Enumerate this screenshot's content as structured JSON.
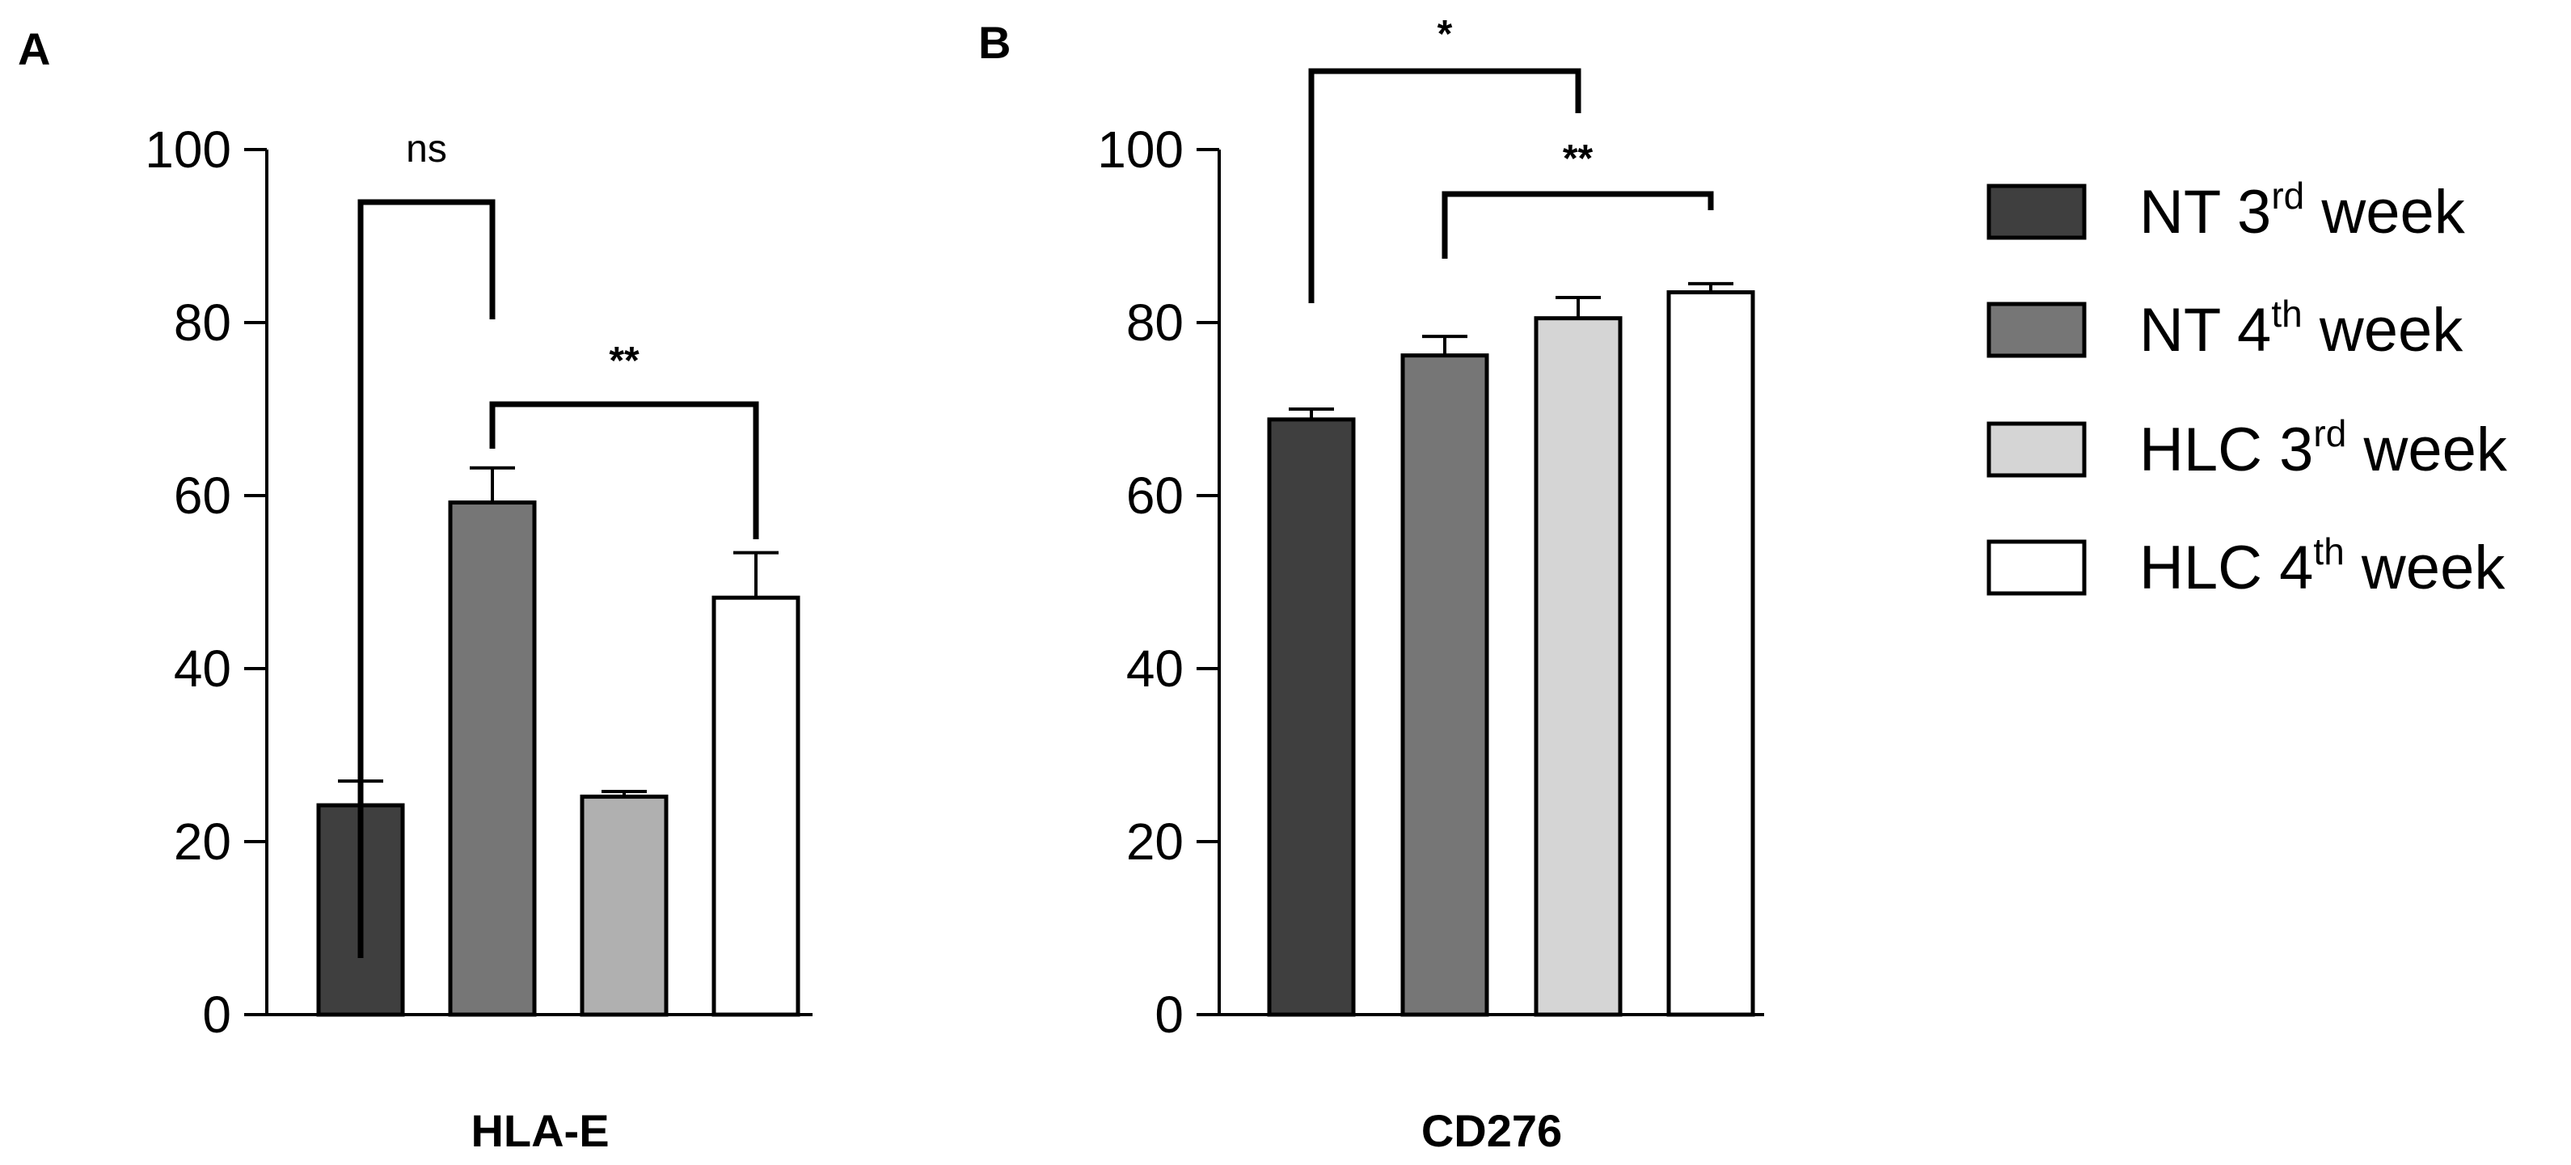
{
  "chart_data": [
    {
      "id": "A",
      "type": "bar",
      "panel_label": "A",
      "title": "",
      "xlabel": "HLA-E",
      "ylabel": "",
      "ylim": [
        0,
        100
      ],
      "yticks": [
        "0",
        "20",
        "40",
        "60",
        "80",
        "100"
      ],
      "grid": false,
      "categories": [
        "NT 3rd week",
        "NT 4th week",
        "HLC 3rd week",
        "HLC 4th week"
      ],
      "values": [
        24.2,
        59.2,
        25.2,
        48.2
      ],
      "errors": [
        2.8,
        4.0,
        0.6,
        5.2
      ],
      "colors": [
        "#3f3f3f",
        "#767676",
        "#b0b0b0",
        "#ffffff"
      ],
      "significance": [
        {
          "from": 0,
          "to": 1,
          "label": "ns",
          "bold": false
        },
        {
          "from": 1,
          "to": 3,
          "label": "**",
          "bold": true
        }
      ]
    },
    {
      "id": "B",
      "type": "bar",
      "panel_label": "B",
      "title": "",
      "xlabel": "CD276",
      "ylabel": "",
      "ylim": [
        0,
        100
      ],
      "yticks": [
        "0",
        "20",
        "40",
        "60",
        "80",
        "100"
      ],
      "grid": false,
      "categories": [
        "NT 3rd week",
        "NT 4th week",
        "HLC 3rd week",
        "HLC 4th week"
      ],
      "values": [
        68.8,
        76.2,
        80.5,
        83.5
      ],
      "errors": [
        1.2,
        2.2,
        2.4,
        1.0
      ],
      "colors": [
        "#3f3f3f",
        "#767676",
        "#d5d5d5",
        "#ffffff"
      ],
      "significance": [
        {
          "from": 0,
          "to": 2,
          "label": "*",
          "bold": true
        },
        {
          "from": 1,
          "to": 3,
          "label": "**",
          "bold": true
        }
      ]
    }
  ],
  "legend": {
    "placement": "right",
    "items": [
      {
        "main": "NT 3",
        "sup": "rd",
        "suffix": " week",
        "color": "#3f3f3f"
      },
      {
        "main": "NT 4",
        "sup": "th",
        "suffix": " week",
        "color": "#767676"
      },
      {
        "main": "HLC 3",
        "sup": "rd",
        "suffix": " week",
        "color": "#d5d5d5"
      },
      {
        "main": "HLC 4",
        "sup": "th",
        "suffix": " week",
        "color": "#ffffff"
      }
    ]
  }
}
